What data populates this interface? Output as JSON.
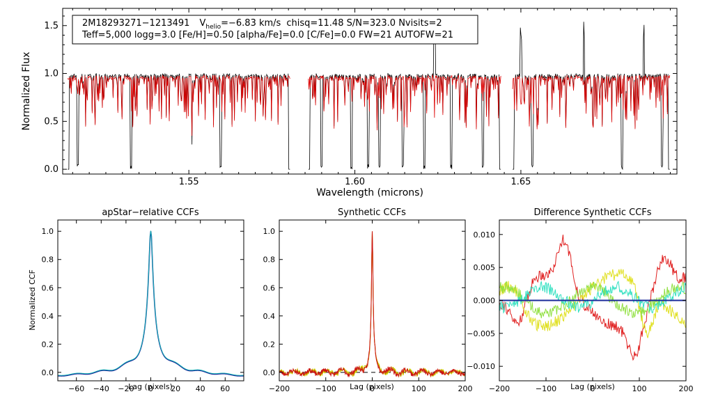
{
  "chart_data": [
    {
      "id": "spectrum",
      "type": "line",
      "title": "",
      "xlabel": "Wavelength (microns)",
      "ylabel": "Normalized Flux",
      "xlim": [
        1.512,
        1.697
      ],
      "ylim": [
        -0.05,
        1.68
      ],
      "xticks": [
        1.55,
        1.6,
        1.65
      ],
      "xtick_labels": [
        "1.55",
        "1.60",
        "1.65"
      ],
      "yticks": [
        0.0,
        0.5,
        1.0,
        1.5
      ],
      "ytick_labels": [
        "0.0",
        "0.5",
        "1.0",
        "1.5"
      ],
      "chip_gaps": [
        [
          1.5805,
          1.586
        ],
        [
          1.644,
          1.6475
        ]
      ],
      "observed_emission_lines_x": [
        1.624,
        1.65,
        1.669,
        1.687
      ],
      "observed_deep_absorption_x": [
        1.5165,
        1.5325,
        1.5595,
        1.5805,
        1.59,
        1.599,
        1.604,
        1.6075,
        1.6145,
        1.621,
        1.629,
        1.6385,
        1.6535,
        1.6805,
        1.6925
      ],
      "series": [
        {
          "name": "Observed spectrum",
          "color": "#000000",
          "continuum": 1.0
        },
        {
          "name": "Best-fit synthetic",
          "color": "#dd0000",
          "continuum": 0.98
        }
      ],
      "info": {
        "star_id": "2M18293271−1213491",
        "v_prefix": "V",
        "v_sub": "helio",
        "v_value": "=−6.83 km/s",
        "rest_line1": "chisq=11.48  S/N=323.0  Nvisits=2",
        "line2": "Teff=5,000 logg=3.0 [Fe/H]=0.50 [alpha/Fe]=0.0 [C/Fe]=0.0 FW=21 AUTOFW=21"
      }
    },
    {
      "id": "apstar_ccf",
      "type": "line",
      "title": "apStar−relative CCFs",
      "xlabel": "Lag (pixels)",
      "ylabel": "Normalized CCF",
      "xlim": [
        -75,
        75
      ],
      "ylim": [
        -0.06,
        1.08
      ],
      "xticks": [
        -60,
        -40,
        -20,
        0,
        20,
        40,
        60
      ],
      "xtick_labels": [
        "−60",
        "−40",
        "−20",
        "0",
        "20",
        "40",
        "60"
      ],
      "yticks": [
        0.0,
        0.2,
        0.4,
        0.6,
        0.8,
        1.0
      ],
      "ytick_labels": [
        "0.0",
        "0.2",
        "0.4",
        "0.6",
        "0.8",
        "1.0"
      ],
      "series": [
        {
          "name": "visit 1",
          "color": "#1a2a9a",
          "peak": 1.0,
          "x": 0
        },
        {
          "name": "visit 2",
          "color": "#17b5b5",
          "peak": 1.0,
          "x": 0
        }
      ]
    },
    {
      "id": "synthetic_ccf",
      "type": "line",
      "title": "Synthetic CCFs",
      "xlabel": "Lag (pixels)",
      "ylabel": "",
      "xlim": [
        -200,
        200
      ],
      "ylim": [
        -0.06,
        1.08
      ],
      "xticks": [
        -200,
        -100,
        0,
        100,
        200
      ],
      "xtick_labels": [
        "−200",
        "−100",
        "0",
        "100",
        "200"
      ],
      "yticks": [
        0.0,
        0.2,
        0.4,
        0.6,
        0.8,
        1.0
      ],
      "ytick_labels": [
        "0.0",
        "0.2",
        "0.4",
        "0.6",
        "0.8",
        "1.0"
      ],
      "baseline": 0.0,
      "series": [
        {
          "name": "visit 1",
          "color": "#ccdd00"
        },
        {
          "name": "visit 2",
          "color": "#cc6600"
        },
        {
          "name": "combined",
          "color": "#cc1111"
        }
      ]
    },
    {
      "id": "difference_ccf",
      "type": "line",
      "title": "Difference Synthetic CCFs",
      "xlabel": "Lag (pixels)",
      "ylabel": "",
      "xlim": [
        -200,
        200
      ],
      "ylim": [
        -0.0122,
        0.0122
      ],
      "xticks": [
        -200,
        -100,
        0,
        100,
        200
      ],
      "xtick_labels": [
        "−200",
        "−100",
        "0",
        "100",
        "200"
      ],
      "yticks": [
        -0.01,
        -0.005,
        0.0,
        0.005,
        0.01
      ],
      "ytick_labels": [
        "−0.010",
        "−0.005",
        "0.000",
        "0.005",
        "0.010"
      ],
      "zero_line_color": "#1a2a9a",
      "series": [
        {
          "name": "red",
          "color": "#e02020",
          "amplitude": 0.01
        },
        {
          "name": "yellow",
          "color": "#e0e020",
          "amplitude": 0.0095
        },
        {
          "name": "green",
          "color": "#90e040",
          "amplitude": 0.003
        },
        {
          "name": "cyan",
          "color": "#30e0c0",
          "amplitude": 0.0022
        },
        {
          "name": "zero",
          "color": "#1a2a9a",
          "amplitude": 0.0
        }
      ]
    }
  ]
}
